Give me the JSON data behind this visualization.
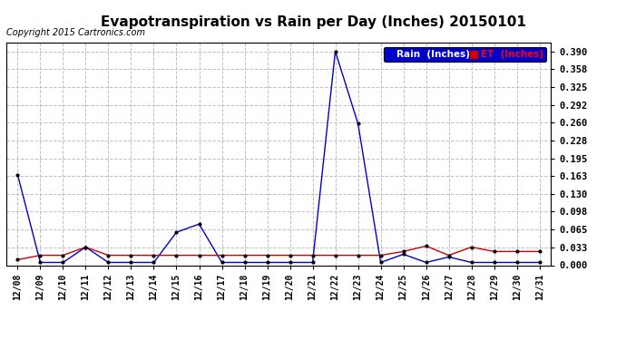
{
  "title": "Evapotranspiration vs Rain per Day (Inches) 20150101",
  "copyright": "Copyright 2015 Cartronics.com",
  "dates": [
    "12/08",
    "12/09",
    "12/10",
    "12/11",
    "12/12",
    "12/13",
    "12/14",
    "12/15",
    "12/16",
    "12/17",
    "12/18",
    "12/19",
    "12/20",
    "12/21",
    "12/22",
    "12/23",
    "12/24",
    "12/25",
    "12/26",
    "12/27",
    "12/28",
    "12/29",
    "12/30",
    "12/31"
  ],
  "rain": [
    0.165,
    0.005,
    0.005,
    0.033,
    0.005,
    0.005,
    0.005,
    0.06,
    0.075,
    0.005,
    0.005,
    0.005,
    0.005,
    0.005,
    0.39,
    0.258,
    0.005,
    0.02,
    0.005,
    0.015,
    0.005,
    0.005,
    0.005,
    0.005
  ],
  "et": [
    0.01,
    0.018,
    0.018,
    0.033,
    0.018,
    0.018,
    0.018,
    0.018,
    0.018,
    0.018,
    0.018,
    0.018,
    0.018,
    0.018,
    0.018,
    0.018,
    0.018,
    0.025,
    0.035,
    0.018,
    0.033,
    0.025,
    0.025,
    0.025
  ],
  "rain_color": "#0000cc",
  "et_color": "#cc0000",
  "bg_color": "#ffffff",
  "grid_color": "#c0c0c0",
  "title_fontsize": 11,
  "copyright_fontsize": 7,
  "yticks": [
    0.0,
    0.033,
    0.065,
    0.098,
    0.13,
    0.163,
    0.195,
    0.228,
    0.26,
    0.292,
    0.325,
    0.358,
    0.39
  ],
  "ylim": [
    0.0,
    0.406
  ],
  "legend_rain": "Rain  (Inches)",
  "legend_et": "ET  (Inches)"
}
